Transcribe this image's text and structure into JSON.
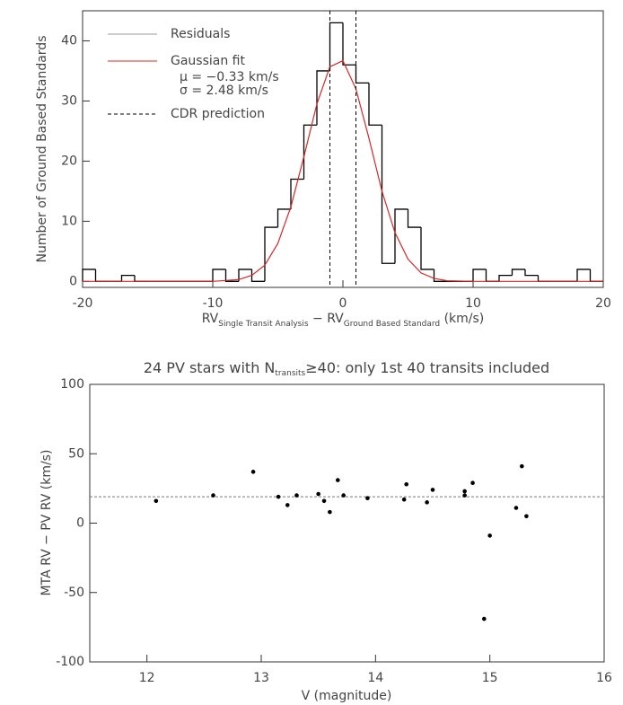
{
  "chart_data": [
    {
      "type": "histogram",
      "ylabel": "Number of Ground Based Standards",
      "xlabel_parts": [
        "RV",
        "Single Transit Analysis",
        " − RV",
        "Ground Based Standard",
        " (km/s)"
      ],
      "bins": [
        -20,
        -19,
        -18,
        -17,
        -16,
        -15,
        -14,
        -13,
        -12,
        -11,
        -10,
        -9,
        -8,
        -7,
        -6,
        -5,
        -4,
        -3,
        -2,
        -1,
        0,
        1,
        2,
        3,
        4,
        5,
        6,
        7,
        8,
        9,
        10,
        11,
        12,
        13,
        14,
        15,
        16,
        17,
        18,
        19,
        20
      ],
      "series": [
        {
          "name": "Residuals",
          "color": "#000000",
          "values": [
            2,
            0,
            0,
            1,
            0,
            0,
            0,
            0,
            0,
            0,
            2,
            0,
            2,
            0,
            9,
            12,
            17,
            26,
            35,
            43,
            36,
            33,
            26,
            3,
            12,
            9,
            2,
            0,
            0,
            0,
            2,
            0,
            1,
            2,
            1,
            0,
            0,
            0,
            2,
            0
          ]
        }
      ],
      "fit": {
        "name": "Gaussian fit",
        "color": "#d62828",
        "x": [
          -20,
          -10,
          -8,
          -7,
          -6,
          -5,
          -4,
          -3,
          -2,
          -1,
          0,
          1,
          2,
          3,
          4,
          5,
          6,
          7,
          8,
          10,
          20
        ],
        "values": [
          0,
          0,
          0.3,
          1,
          2.7,
          6.3,
          12.4,
          20.7,
          29.5,
          35.7,
          36.7,
          32,
          23.8,
          15,
          8.1,
          3.7,
          1.4,
          0.5,
          0.1,
          0,
          0
        ]
      },
      "vlines": {
        "name": "CDR prediction",
        "x": [
          -1,
          1
        ]
      },
      "annotations": [
        "μ = −0.33 km/s",
        "σ = 2.48 km/s"
      ],
      "xlim": [
        -20,
        20
      ],
      "ylim": [
        -1,
        45
      ],
      "xticks": [
        -20,
        -10,
        0,
        10,
        20
      ],
      "yticks": [
        0,
        10,
        20,
        30,
        40
      ]
    },
    {
      "type": "scatter",
      "title_parts": [
        "24 PV stars with N",
        "transits",
        "≥40: only 1st 40 transits included"
      ],
      "xlabel": "V (magnitude)",
      "ylabel": "MTA RV − PV RV (km/s)",
      "x": [
        12.08,
        12.58,
        12.93,
        13.15,
        13.23,
        13.31,
        13.5,
        13.55,
        13.6,
        13.67,
        13.72,
        13.93,
        14.25,
        14.27,
        14.45,
        14.5,
        14.78,
        14.78,
        14.85,
        14.95,
        15.0,
        15.23,
        15.28,
        15.32
      ],
      "values": [
        16,
        20,
        37,
        19,
        13,
        20,
        21,
        16,
        8,
        31,
        20,
        18,
        17,
        28,
        15,
        24,
        20,
        23,
        29,
        -69,
        -9,
        11,
        41,
        5
      ],
      "color": "#000000",
      "hline": 19,
      "xlim": [
        11.5,
        16
      ],
      "ylim": [
        -100,
        100
      ],
      "xticks": [
        12,
        13,
        14,
        15,
        16
      ],
      "yticks": [
        -100,
        -50,
        0,
        50,
        100
      ]
    }
  ]
}
